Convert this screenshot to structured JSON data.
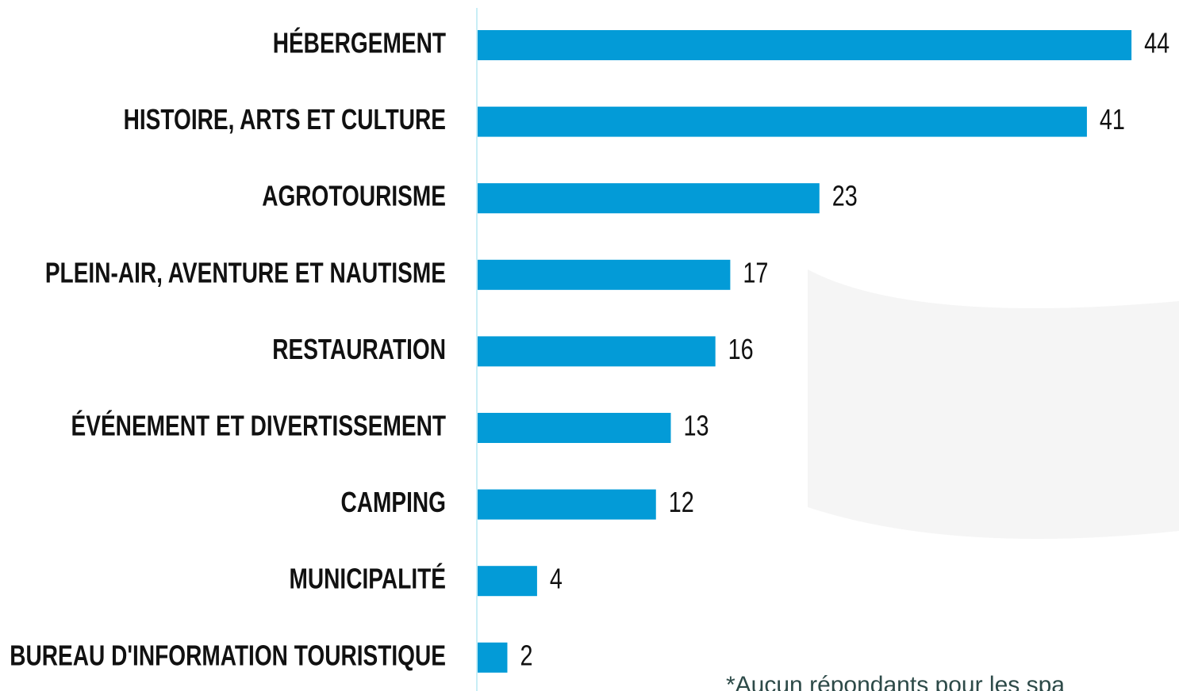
{
  "chart_data": {
    "type": "bar",
    "orientation": "horizontal",
    "categories": [
      "HÉBERGEMENT",
      "HISTOIRE, ARTS ET CULTURE",
      "AGROTOURISME",
      "PLEIN-AIR, AVENTURE ET NAUTISME",
      "RESTAURATION",
      "ÉVÉNEMENT ET DIVERTISSEMENT",
      "CAMPING",
      "MUNICIPALITÉ",
      "BUREAU D'INFORMATION TOURISTIQUE"
    ],
    "values": [
      44,
      41,
      23,
      17,
      16,
      13,
      12,
      4,
      2
    ],
    "color": "#039bd7",
    "note": "*Aucun répondants pour les spa"
  }
}
